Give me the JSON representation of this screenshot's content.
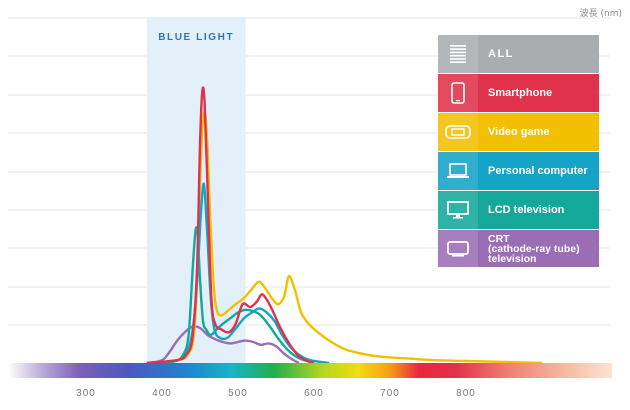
{
  "unit_label": "波長 (nm)",
  "band_label": "BLUE LIGHT",
  "legend": [
    {
      "label": "ALL",
      "color": "#aaadb0",
      "icon": "list-icon"
    },
    {
      "label": "Smartphone",
      "color": "#e0324b",
      "icon": "smartphone-icon"
    },
    {
      "label": "Video game",
      "color": "#f2c000",
      "icon": "game-console-icon"
    },
    {
      "label": "Personal computer",
      "color": "#15a3c7",
      "icon": "laptop-icon"
    },
    {
      "label": "LCD television",
      "color": "#14a89a",
      "icon": "monitor-icon"
    },
    {
      "label": "CRT\n(cathode-ray tube)\ntelevision",
      "color": "#9b6db5",
      "icon": "tv-icon"
    }
  ],
  "chart_data": {
    "type": "line",
    "xlabel": "波長 (nm)",
    "xlim": [
      200,
      1000
    ],
    "xticks": [
      300,
      400,
      500,
      600,
      700,
      800
    ],
    "ylim": [
      0,
      1
    ],
    "highlight_band": {
      "label": "BLUE LIGHT",
      "range": [
        380,
        510
      ],
      "color": "#e3f0f9"
    },
    "series": [
      {
        "name": "Smartphone",
        "color": "#e0324b",
        "points": [
          [
            380,
            0.0
          ],
          [
            420,
            0.01
          ],
          [
            432,
            0.03
          ],
          [
            440,
            0.09
          ],
          [
            446,
            0.33
          ],
          [
            450,
            0.78
          ],
          [
            453,
            0.97
          ],
          [
            456,
            0.93
          ],
          [
            460,
            0.62
          ],
          [
            465,
            0.23
          ],
          [
            470,
            0.14
          ],
          [
            478,
            0.12
          ],
          [
            488,
            0.11
          ],
          [
            497,
            0.14
          ],
          [
            506,
            0.21
          ],
          [
            516,
            0.2
          ],
          [
            525,
            0.22
          ],
          [
            531,
            0.245
          ],
          [
            537,
            0.23
          ],
          [
            545,
            0.19
          ],
          [
            555,
            0.13
          ],
          [
            565,
            0.08
          ],
          [
            575,
            0.04
          ],
          [
            585,
            0.015
          ],
          [
            600,
            0.0
          ]
        ]
      },
      {
        "name": "Video game",
        "color": "#f2c000",
        "points": [
          [
            380,
            0.0
          ],
          [
            420,
            0.01
          ],
          [
            434,
            0.03
          ],
          [
            442,
            0.1
          ],
          [
            447,
            0.35
          ],
          [
            451,
            0.72
          ],
          [
            455,
            0.89
          ],
          [
            459,
            0.82
          ],
          [
            463,
            0.55
          ],
          [
            468,
            0.28
          ],
          [
            472,
            0.19
          ],
          [
            478,
            0.17
          ],
          [
            488,
            0.19
          ],
          [
            497,
            0.21
          ],
          [
            507,
            0.23
          ],
          [
            517,
            0.26
          ],
          [
            527,
            0.29
          ],
          [
            535,
            0.27
          ],
          [
            545,
            0.23
          ],
          [
            553,
            0.21
          ],
          [
            561,
            0.24
          ],
          [
            567,
            0.31
          ],
          [
            575,
            0.26
          ],
          [
            583,
            0.18
          ],
          [
            593,
            0.14
          ],
          [
            605,
            0.11
          ],
          [
            620,
            0.08
          ],
          [
            640,
            0.05
          ],
          [
            660,
            0.035
          ],
          [
            680,
            0.025
          ],
          [
            700,
            0.02
          ],
          [
            730,
            0.015
          ],
          [
            760,
            0.01
          ],
          [
            800,
            0.007
          ],
          [
            860,
            0.003
          ],
          [
            900,
            0.0
          ]
        ]
      },
      {
        "name": "Personal computer",
        "color": "#15a3c7",
        "points": [
          [
            380,
            0.0
          ],
          [
            420,
            0.01
          ],
          [
            430,
            0.03
          ],
          [
            437,
            0.07
          ],
          [
            443,
            0.18
          ],
          [
            448,
            0.38
          ],
          [
            451,
            0.53
          ],
          [
            455,
            0.64
          ],
          [
            459,
            0.49
          ],
          [
            464,
            0.24
          ],
          [
            469,
            0.12
          ],
          [
            476,
            0.09
          ],
          [
            486,
            0.09
          ],
          [
            496,
            0.12
          ],
          [
            508,
            0.16
          ],
          [
            518,
            0.18
          ],
          [
            528,
            0.195
          ],
          [
            538,
            0.18
          ],
          [
            548,
            0.15
          ],
          [
            558,
            0.1
          ],
          [
            568,
            0.06
          ],
          [
            580,
            0.03
          ],
          [
            595,
            0.01
          ],
          [
            620,
            0.0
          ]
        ]
      },
      {
        "name": "LCD television",
        "color": "#14a89a",
        "points": [
          [
            380,
            0.0
          ],
          [
            415,
            0.005
          ],
          [
            428,
            0.03
          ],
          [
            435,
            0.1
          ],
          [
            440,
            0.32
          ],
          [
            444,
            0.47
          ],
          [
            447,
            0.46
          ],
          [
            450,
            0.3
          ],
          [
            454,
            0.15
          ],
          [
            458,
            0.12
          ],
          [
            464,
            0.1
          ],
          [
            472,
            0.12
          ],
          [
            480,
            0.14
          ],
          [
            490,
            0.16
          ],
          [
            500,
            0.18
          ],
          [
            510,
            0.19
          ],
          [
            520,
            0.185
          ],
          [
            530,
            0.17
          ],
          [
            542,
            0.13
          ],
          [
            555,
            0.08
          ],
          [
            568,
            0.04
          ],
          [
            582,
            0.015
          ],
          [
            600,
            0.0
          ]
        ]
      },
      {
        "name": "CRT (cathode-ray tube) television",
        "color": "#9b6db5",
        "points": [
          [
            380,
            0.0
          ],
          [
            400,
            0.01
          ],
          [
            410,
            0.04
          ],
          [
            420,
            0.08
          ],
          [
            430,
            0.11
          ],
          [
            440,
            0.13
          ],
          [
            450,
            0.125
          ],
          [
            460,
            0.1
          ],
          [
            470,
            0.085
          ],
          [
            480,
            0.075
          ],
          [
            490,
            0.07
          ],
          [
            500,
            0.075
          ],
          [
            510,
            0.08
          ],
          [
            520,
            0.075
          ],
          [
            530,
            0.065
          ],
          [
            540,
            0.07
          ],
          [
            550,
            0.06
          ],
          [
            560,
            0.035
          ],
          [
            570,
            0.015
          ],
          [
            580,
            0.0
          ]
        ]
      }
    ]
  }
}
